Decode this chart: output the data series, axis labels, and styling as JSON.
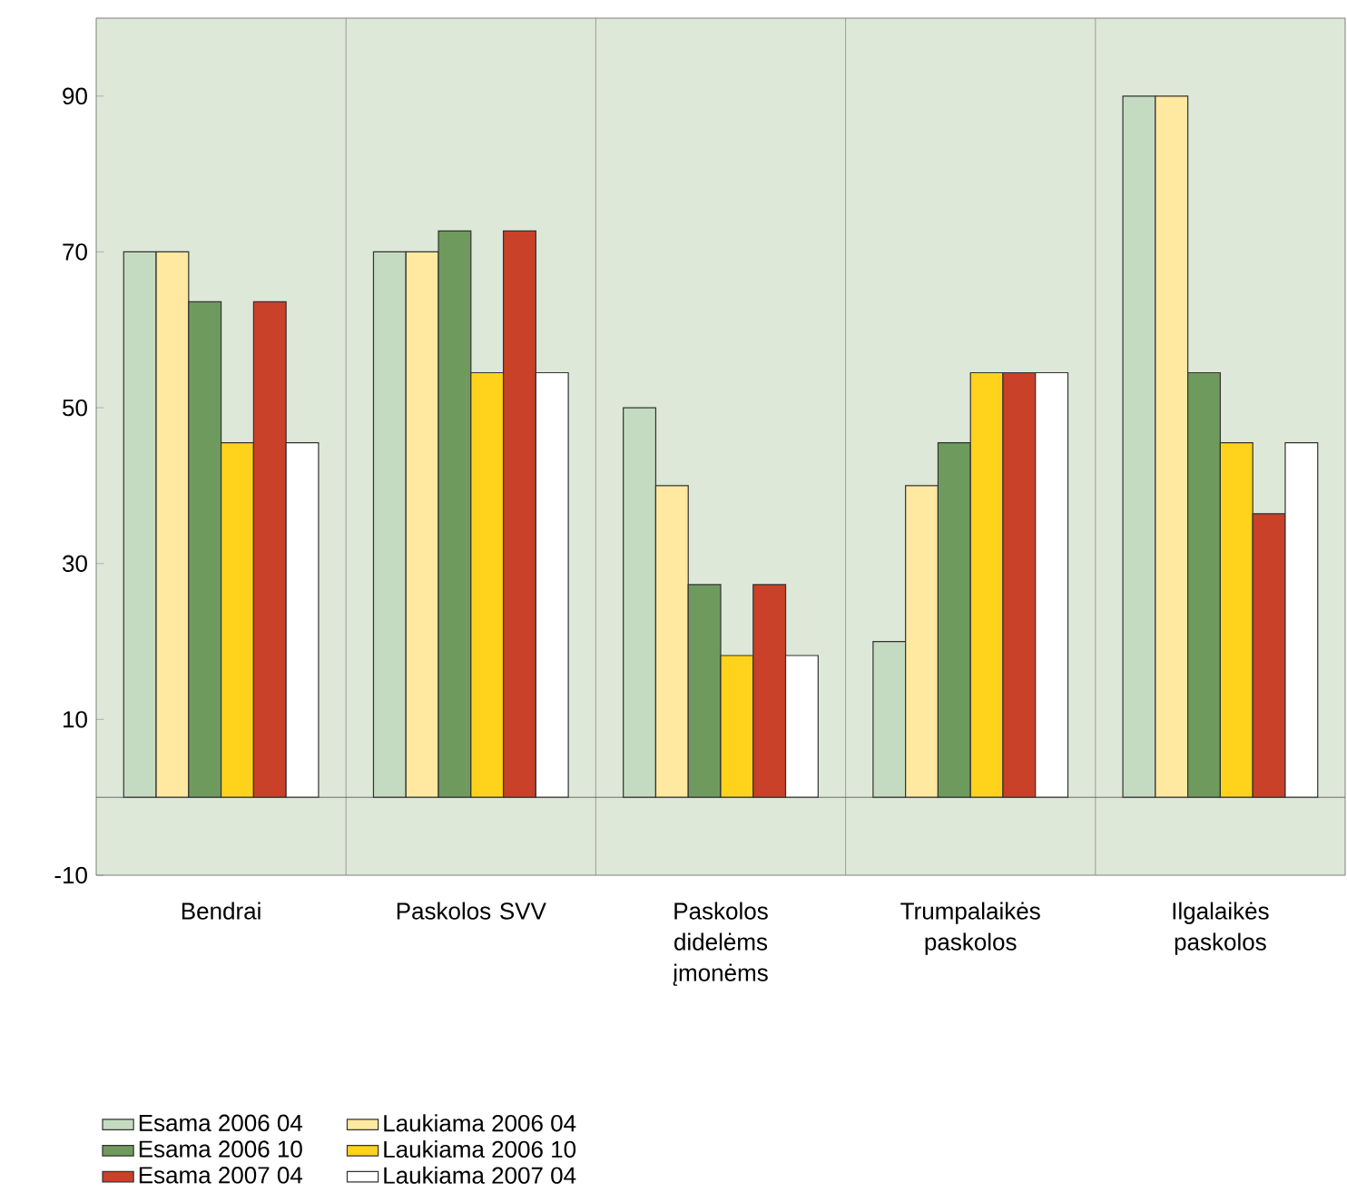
{
  "chart_data": {
    "type": "bar",
    "categories": [
      "Bendrai",
      "Paskolos SVV",
      "Paskolos didelėms įmonėms",
      "Trumpalaikės paskolos",
      "Ilgalaikės paskolos"
    ],
    "series": [
      {
        "name": "Esama 2006 04",
        "color": "#c5dbc1",
        "values": [
          70,
          70,
          50,
          20,
          90
        ]
      },
      {
        "name": "Laukiama 2006 04",
        "color": "#ffe8a0",
        "values": [
          70,
          70,
          40,
          40,
          90
        ]
      },
      {
        "name": "Esama 2006 10",
        "color": "#6f9a5e",
        "values": [
          63.6,
          72.7,
          27.3,
          45.5,
          54.5
        ]
      },
      {
        "name": "Laukiama 2006 10",
        "color": "#ffd21c",
        "values": [
          45.5,
          54.5,
          18.2,
          54.5,
          45.5
        ]
      },
      {
        "name": "Esama 2007 04",
        "color": "#c84128",
        "values": [
          63.6,
          72.7,
          27.3,
          54.5,
          36.4
        ]
      },
      {
        "name": "Laukiama 2007 04",
        "color": "#ffffff",
        "values": [
          45.5,
          54.5,
          18.2,
          54.5,
          45.5
        ]
      }
    ],
    "ylim": [
      -10,
      100
    ],
    "yticks": [
      -10,
      10,
      30,
      50,
      70,
      90
    ],
    "legend": "bottom"
  }
}
